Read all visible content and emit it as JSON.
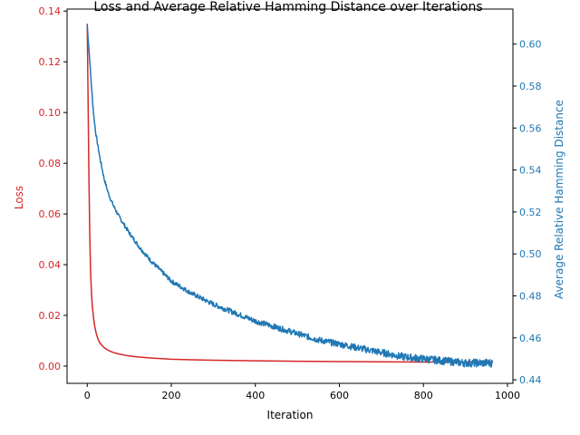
{
  "chart_data": {
    "type": "line",
    "title": "Loss and Average Relative Hamming Distance over Iterations",
    "xlabel": "Iteration",
    "xlim": [
      -48,
      1013
    ],
    "x_ticks": [
      0,
      200,
      400,
      600,
      800,
      1000
    ],
    "grid": false,
    "legend": "none",
    "axes": {
      "left": {
        "label": "Loss",
        "color": "#d62728",
        "ylim": [
          -0.0068,
          0.1408
        ],
        "ticks": [
          "0.00",
          "0.02",
          "0.04",
          "0.06",
          "0.08",
          "0.10",
          "0.12",
          "0.14"
        ]
      },
      "right": {
        "label": "Average Relative Hamming Distance",
        "color": "#1f77b4",
        "ylim": [
          0.4383,
          0.6167
        ],
        "ticks": [
          "0.44",
          "0.46",
          "0.48",
          "0.50",
          "0.52",
          "0.54",
          "0.56",
          "0.58",
          "0.60"
        ]
      }
    },
    "series": [
      {
        "axis": "left",
        "color": "#d62728",
        "x": [
          0,
          2,
          4,
          6,
          8,
          10,
          12,
          15,
          18,
          22,
          26,
          30,
          35,
          40,
          50,
          60,
          70,
          80,
          90,
          100,
          120,
          150,
          200,
          250,
          300,
          400,
          500,
          600,
          700,
          800,
          900,
          965
        ],
        "values": [
          0.135,
          0.105,
          0.075,
          0.052,
          0.037,
          0.029,
          0.024,
          0.019,
          0.0155,
          0.0125,
          0.0105,
          0.0092,
          0.0082,
          0.0073,
          0.0062,
          0.0055,
          0.005,
          0.0046,
          0.0043,
          0.004,
          0.0036,
          0.0032,
          0.0027,
          0.0025,
          0.0023,
          0.0021,
          0.0019,
          0.0018,
          0.0017,
          0.0016,
          0.0016,
          0.0016
        ]
      },
      {
        "axis": "right",
        "color": "#1f77b4",
        "noisy": true,
        "x": [
          0,
          5,
          10,
          15,
          20,
          30,
          40,
          50,
          60,
          75,
          100,
          125,
          150,
          175,
          200,
          250,
          300,
          350,
          400,
          450,
          500,
          550,
          600,
          650,
          700,
          750,
          800,
          850,
          900,
          965
        ],
        "values": [
          0.609,
          0.595,
          0.58,
          0.567,
          0.558,
          0.546,
          0.536,
          0.529,
          0.524,
          0.518,
          0.51,
          0.503,
          0.497,
          0.492,
          0.487,
          0.481,
          0.476,
          0.472,
          0.468,
          0.465,
          0.462,
          0.459,
          0.457,
          0.455,
          0.453,
          0.451,
          0.45,
          0.449,
          0.448,
          0.448
        ]
      }
    ]
  }
}
